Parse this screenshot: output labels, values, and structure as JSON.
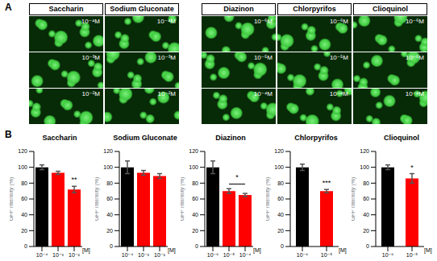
{
  "panel_a": {
    "label": "A",
    "groups": [
      {
        "columns": [
          {
            "name": "Saccharin",
            "concentrations": [
              "10⁻⁴M",
              "10⁻³M",
              "10⁻²M"
            ]
          },
          {
            "name": "Sodium Gluconate",
            "concentrations": [
              "10⁻⁴M",
              "10⁻³M",
              "10⁻²M"
            ]
          }
        ]
      },
      {
        "columns": [
          {
            "name": "Diazinon",
            "concentrations": [
              "10⁻⁶M",
              "10⁻⁵M",
              "10⁻⁴M"
            ]
          },
          {
            "name": "Chlorpyrifos",
            "concentrations": [
              "10⁻⁶M",
              "10⁻⁵M",
              "10⁻⁴M"
            ]
          },
          {
            "name": "Clioquinol",
            "concentrations": [
              "10⁻⁶M",
              "10⁻⁵M",
              "10⁻⁴M"
            ]
          }
        ]
      }
    ]
  },
  "panel_b": {
    "label": "B"
  },
  "chart_data": [
    {
      "type": "bar",
      "title": "Saccharin",
      "ylabel": "GFP intensity (%)",
      "xlabel": "[M]",
      "categories": [
        "10⁻⁴",
        "10⁻³",
        "10⁻²"
      ],
      "values": [
        100,
        93,
        72
      ],
      "errors": [
        3,
        2,
        4
      ],
      "colors": [
        "#000000",
        "#ff0000",
        "#ff0000"
      ],
      "ylim": [
        0,
        120
      ],
      "yticks": [
        0,
        20,
        40,
        60,
        80,
        100,
        120
      ],
      "significance": [
        {
          "label": "**",
          "categories": [
            "10⁻²"
          ]
        }
      ]
    },
    {
      "type": "bar",
      "title": "Sodium Gluconate",
      "ylabel": "GFP intensity (%)",
      "xlabel": "[M]",
      "categories": [
        "10⁻⁴",
        "10⁻³",
        "10⁻²"
      ],
      "values": [
        100,
        93,
        89
      ],
      "errors": [
        8,
        3,
        3
      ],
      "colors": [
        "#000000",
        "#ff0000",
        "#ff0000"
      ],
      "ylim": [
        0,
        120
      ],
      "yticks": [
        0,
        20,
        40,
        60,
        80,
        100,
        120
      ],
      "significance": []
    },
    {
      "type": "bar",
      "title": "Diazinon",
      "ylabel": "GFP intensity (%)",
      "xlabel": "[M]",
      "categories": [
        "10⁻⁶",
        "10⁻⁵",
        "10⁻⁴"
      ],
      "values": [
        100,
        70,
        65
      ],
      "errors": [
        8,
        3,
        2
      ],
      "colors": [
        "#000000",
        "#ff0000",
        "#ff0000"
      ],
      "ylim": [
        0,
        120
      ],
      "yticks": [
        0,
        20,
        40,
        60,
        80,
        100,
        120
      ],
      "significance": [
        {
          "label": "*",
          "categories": [
            "10⁻⁵",
            "10⁻⁴"
          ]
        }
      ]
    },
    {
      "type": "bar",
      "title": "Chlorpyrifos",
      "ylabel": "GFP intensity (%)",
      "xlabel": "[M]",
      "categories": [
        "10⁻⁶",
        "10⁻⁵"
      ],
      "values": [
        100,
        70
      ],
      "errors": [
        4,
        2
      ],
      "colors": [
        "#000000",
        "#ff0000"
      ],
      "ylim": [
        0,
        120
      ],
      "yticks": [
        0,
        20,
        40,
        60,
        80,
        100,
        120
      ],
      "significance": [
        {
          "label": "***",
          "categories": [
            "10⁻⁵"
          ]
        }
      ]
    },
    {
      "type": "bar",
      "title": "Clioquinol",
      "ylabel": "GFP intensity (%)",
      "xlabel": "[M]",
      "categories": [
        "10⁻⁶",
        "10⁻⁵"
      ],
      "values": [
        100,
        86
      ],
      "errors": [
        3,
        6
      ],
      "colors": [
        "#000000",
        "#ff0000"
      ],
      "ylim": [
        0,
        120
      ],
      "yticks": [
        0,
        20,
        40,
        60,
        80,
        100,
        120
      ],
      "significance": [
        {
          "label": "*",
          "categories": [
            "10⁻⁵"
          ]
        }
      ]
    }
  ]
}
